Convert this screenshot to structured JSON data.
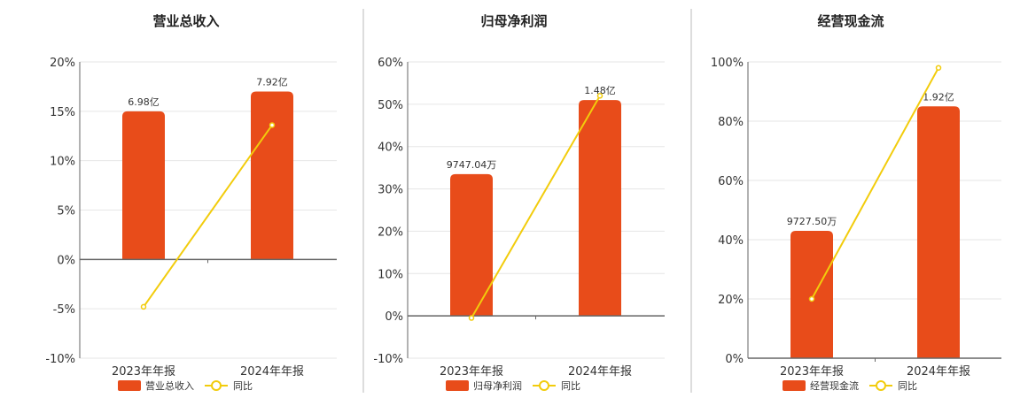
{
  "colors": {
    "bar": "#e84c1a",
    "line": "#f2cc0c",
    "grid": "#e6e6e6",
    "axis": "#666666",
    "divider": "#bbbbbb"
  },
  "chart_data": [
    {
      "type": "bar",
      "title": "营业总收入",
      "categories": [
        "2023年年报",
        "2024年年报"
      ],
      "y_ticks": [
        "20%",
        "15%",
        "10%",
        "5%",
        "0%",
        "-5%",
        "-10%"
      ],
      "ylim": [
        -10,
        20
      ],
      "series": [
        {
          "name": "营业总收入",
          "type": "bar",
          "values": [
            15,
            17
          ],
          "labels": [
            "6.98亿",
            "7.92亿"
          ]
        },
        {
          "name": "同比",
          "type": "line",
          "values": [
            -4.8,
            13.6
          ]
        }
      ],
      "legend_position": "bottom"
    },
    {
      "type": "bar",
      "title": "归母净利润",
      "categories": [
        "2023年年报",
        "2024年年报"
      ],
      "y_ticks": [
        "60%",
        "50%",
        "40%",
        "30%",
        "20%",
        "10%",
        "0%",
        "-10%"
      ],
      "ylim": [
        -10,
        60
      ],
      "series": [
        {
          "name": "归母净利润",
          "type": "bar",
          "values": [
            33.5,
            51
          ],
          "labels": [
            "9747.04万",
            "1.48亿"
          ]
        },
        {
          "name": "同比",
          "type": "line",
          "values": [
            -0.5,
            52
          ]
        }
      ],
      "legend_position": "bottom"
    },
    {
      "type": "bar",
      "title": "经营现金流",
      "categories": [
        "2023年年报",
        "2024年年报"
      ],
      "y_ticks": [
        "100%",
        "80%",
        "60%",
        "40%",
        "20%",
        "0%"
      ],
      "ylim": [
        0,
        100
      ],
      "series": [
        {
          "name": "经营现金流",
          "type": "bar",
          "values": [
            43,
            85
          ],
          "labels": [
            "9727.50万",
            "1.92亿"
          ]
        },
        {
          "name": "同比",
          "type": "line",
          "values": [
            20,
            98
          ]
        }
      ],
      "legend_position": "bottom"
    }
  ]
}
